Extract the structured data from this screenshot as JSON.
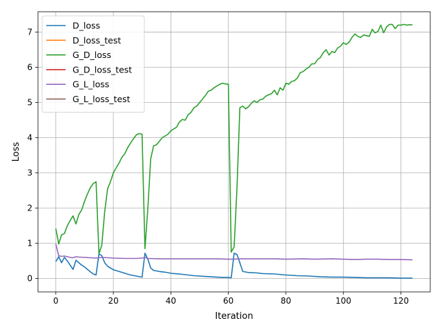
{
  "chart_data": {
    "type": "line",
    "title": "",
    "xlabel": "Iteration",
    "ylabel": "Loss",
    "xlim": [
      -6.2,
      130.2
    ],
    "ylim": [
      -0.38,
      7.58
    ],
    "xticks": [
      0,
      20,
      40,
      60,
      80,
      100,
      120
    ],
    "yticks": [
      0,
      1,
      2,
      3,
      4,
      5,
      6,
      7
    ],
    "grid": true,
    "legend_position": "top-left",
    "series": [
      {
        "name": "D_loss",
        "color": "#1f77b4",
        "points": [
          [
            0,
            0.48
          ],
          [
            1,
            0.62
          ],
          [
            2,
            0.45
          ],
          [
            3,
            0.6
          ],
          [
            4,
            0.5
          ],
          [
            5,
            0.38
          ],
          [
            6,
            0.26
          ],
          [
            7,
            0.52
          ],
          [
            8,
            0.45
          ],
          [
            9,
            0.38
          ],
          [
            10,
            0.33
          ],
          [
            11,
            0.26
          ],
          [
            12,
            0.19
          ],
          [
            13,
            0.13
          ],
          [
            14,
            0.1
          ],
          [
            15,
            0.7
          ],
          [
            16,
            0.65
          ],
          [
            17,
            0.45
          ],
          [
            18,
            0.35
          ],
          [
            19,
            0.3
          ],
          [
            20,
            0.25
          ],
          [
            22,
            0.2
          ],
          [
            24,
            0.15
          ],
          [
            26,
            0.1
          ],
          [
            28,
            0.07
          ],
          [
            30,
            0.04
          ],
          [
            31,
            0.72
          ],
          [
            32,
            0.55
          ],
          [
            33,
            0.3
          ],
          [
            34,
            0.23
          ],
          [
            36,
            0.2
          ],
          [
            38,
            0.18
          ],
          [
            40,
            0.15
          ],
          [
            44,
            0.12
          ],
          [
            48,
            0.08
          ],
          [
            52,
            0.06
          ],
          [
            56,
            0.04
          ],
          [
            58,
            0.03
          ],
          [
            60,
            0.03
          ],
          [
            61,
            0.02
          ],
          [
            62,
            0.72
          ],
          [
            63,
            0.68
          ],
          [
            64,
            0.45
          ],
          [
            65,
            0.2
          ],
          [
            67,
            0.17
          ],
          [
            70,
            0.16
          ],
          [
            72,
            0.14
          ],
          [
            76,
            0.13
          ],
          [
            80,
            0.1
          ],
          [
            84,
            0.08
          ],
          [
            88,
            0.07
          ],
          [
            92,
            0.05
          ],
          [
            96,
            0.04
          ],
          [
            100,
            0.04
          ],
          [
            104,
            0.03
          ],
          [
            108,
            0.02
          ],
          [
            112,
            0.02
          ],
          [
            116,
            0.02
          ],
          [
            120,
            0.01
          ],
          [
            124,
            0.01
          ]
        ]
      },
      {
        "name": "D_loss_test",
        "color": "#ff7f0e",
        "points": []
      },
      {
        "name": "G_D_loss",
        "color": "#2ca02c",
        "points": [
          [
            0,
            1.42
          ],
          [
            1,
            0.98
          ],
          [
            2,
            1.24
          ],
          [
            3,
            1.28
          ],
          [
            4,
            1.5
          ],
          [
            5,
            1.65
          ],
          [
            6,
            1.78
          ],
          [
            7,
            1.55
          ],
          [
            8,
            1.82
          ],
          [
            9,
            1.95
          ],
          [
            10,
            2.2
          ],
          [
            11,
            2.4
          ],
          [
            12,
            2.58
          ],
          [
            13,
            2.7
          ],
          [
            14,
            2.75
          ],
          [
            15,
            0.7
          ],
          [
            16,
            0.95
          ],
          [
            17,
            1.9
          ],
          [
            18,
            2.55
          ],
          [
            19,
            2.75
          ],
          [
            20,
            3.0
          ],
          [
            21,
            3.15
          ],
          [
            22,
            3.28
          ],
          [
            23,
            3.45
          ],
          [
            24,
            3.55
          ],
          [
            25,
            3.72
          ],
          [
            26,
            3.85
          ],
          [
            27,
            3.97
          ],
          [
            28,
            4.08
          ],
          [
            29,
            4.12
          ],
          [
            30,
            4.1
          ],
          [
            31,
            0.85
          ],
          [
            32,
            2.0
          ],
          [
            33,
            3.4
          ],
          [
            34,
            3.77
          ],
          [
            35,
            3.8
          ],
          [
            36,
            3.9
          ],
          [
            37,
            4.0
          ],
          [
            38,
            4.05
          ],
          [
            39,
            4.1
          ],
          [
            40,
            4.2
          ],
          [
            41,
            4.25
          ],
          [
            42,
            4.3
          ],
          [
            43,
            4.45
          ],
          [
            44,
            4.52
          ],
          [
            45,
            4.5
          ],
          [
            46,
            4.65
          ],
          [
            47,
            4.72
          ],
          [
            48,
            4.85
          ],
          [
            49,
            4.9
          ],
          [
            50,
            5.0
          ],
          [
            51,
            5.1
          ],
          [
            52,
            5.2
          ],
          [
            53,
            5.32
          ],
          [
            54,
            5.35
          ],
          [
            55,
            5.42
          ],
          [
            56,
            5.47
          ],
          [
            57,
            5.52
          ],
          [
            58,
            5.55
          ],
          [
            59,
            5.53
          ],
          [
            60,
            5.52
          ],
          [
            61,
            0.75
          ],
          [
            62,
            0.9
          ],
          [
            63,
            2.6
          ],
          [
            64,
            4.85
          ],
          [
            65,
            4.9
          ],
          [
            66,
            4.82
          ],
          [
            67,
            4.88
          ],
          [
            68,
            4.98
          ],
          [
            69,
            5.05
          ],
          [
            70,
            5.0
          ],
          [
            71,
            5.08
          ],
          [
            72,
            5.1
          ],
          [
            73,
            5.18
          ],
          [
            74,
            5.22
          ],
          [
            75,
            5.25
          ],
          [
            76,
            5.35
          ],
          [
            77,
            5.22
          ],
          [
            78,
            5.42
          ],
          [
            79,
            5.35
          ],
          [
            80,
            5.55
          ],
          [
            81,
            5.52
          ],
          [
            82,
            5.6
          ],
          [
            83,
            5.62
          ],
          [
            84,
            5.7
          ],
          [
            85,
            5.85
          ],
          [
            86,
            5.88
          ],
          [
            87,
            5.95
          ],
          [
            88,
            6.0
          ],
          [
            89,
            6.1
          ],
          [
            90,
            6.1
          ],
          [
            91,
            6.22
          ],
          [
            92,
            6.28
          ],
          [
            93,
            6.42
          ],
          [
            94,
            6.5
          ],
          [
            95,
            6.35
          ],
          [
            96,
            6.45
          ],
          [
            97,
            6.42
          ],
          [
            98,
            6.55
          ],
          [
            99,
            6.6
          ],
          [
            100,
            6.7
          ],
          [
            101,
            6.65
          ],
          [
            102,
            6.72
          ],
          [
            103,
            6.85
          ],
          [
            104,
            6.95
          ],
          [
            105,
            6.88
          ],
          [
            106,
            6.85
          ],
          [
            107,
            6.92
          ],
          [
            108,
            6.9
          ],
          [
            109,
            6.88
          ],
          [
            110,
            7.08
          ],
          [
            111,
            6.98
          ],
          [
            112,
            7.02
          ],
          [
            113,
            7.2
          ],
          [
            114,
            6.98
          ],
          [
            115,
            7.15
          ],
          [
            116,
            7.22
          ],
          [
            117,
            7.22
          ],
          [
            118,
            7.1
          ],
          [
            119,
            7.2
          ],
          [
            120,
            7.2
          ],
          [
            121,
            7.22
          ],
          [
            122,
            7.2
          ],
          [
            123,
            7.21
          ],
          [
            124,
            7.21
          ]
        ]
      },
      {
        "name": "G_D_loss_test",
        "color": "#d62728",
        "points": []
      },
      {
        "name": "G_L_loss",
        "color": "#9467bd",
        "points": [
          [
            0,
            0.98
          ],
          [
            1,
            0.65
          ],
          [
            2,
            0.63
          ],
          [
            3,
            0.64
          ],
          [
            4,
            0.62
          ],
          [
            5,
            0.6
          ],
          [
            6,
            0.59
          ],
          [
            7,
            0.62
          ],
          [
            8,
            0.61
          ],
          [
            10,
            0.6
          ],
          [
            12,
            0.59
          ],
          [
            14,
            0.58
          ],
          [
            16,
            0.6
          ],
          [
            18,
            0.59
          ],
          [
            20,
            0.58
          ],
          [
            24,
            0.57
          ],
          [
            28,
            0.57
          ],
          [
            30,
            0.58
          ],
          [
            31,
            0.6
          ],
          [
            32,
            0.57
          ],
          [
            36,
            0.56
          ],
          [
            40,
            0.56
          ],
          [
            44,
            0.56
          ],
          [
            48,
            0.56
          ],
          [
            52,
            0.56
          ],
          [
            56,
            0.56
          ],
          [
            60,
            0.55
          ],
          [
            62,
            0.55
          ],
          [
            64,
            0.56
          ],
          [
            70,
            0.56
          ],
          [
            76,
            0.56
          ],
          [
            80,
            0.55
          ],
          [
            86,
            0.56
          ],
          [
            90,
            0.55
          ],
          [
            96,
            0.56
          ],
          [
            100,
            0.55
          ],
          [
            104,
            0.54
          ],
          [
            108,
            0.55
          ],
          [
            112,
            0.55
          ],
          [
            116,
            0.54
          ],
          [
            120,
            0.54
          ],
          [
            124,
            0.53
          ]
        ]
      },
      {
        "name": "G_L_loss_test",
        "color": "#8c564b",
        "points": []
      }
    ]
  }
}
